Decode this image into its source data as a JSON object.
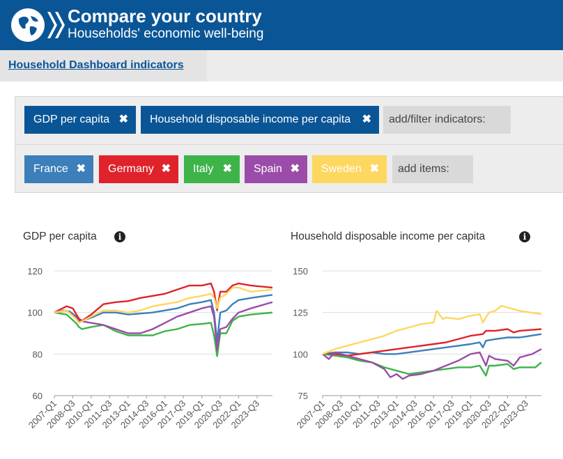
{
  "header": {
    "title": "Compare your country",
    "subtitle": "Households' economic well-being"
  },
  "tabs": [
    {
      "label": "Household Dashboard indicators"
    }
  ],
  "indicators": {
    "chips": [
      {
        "label": "GDP per capita",
        "color": "#0a5596"
      },
      {
        "label": "Household disposable income per capita",
        "color": "#0a5596"
      }
    ],
    "add_placeholder": "add/filter indicators:"
  },
  "countries": {
    "chips": [
      {
        "label": "France",
        "color": "#3c7fba"
      },
      {
        "label": "Germany",
        "color": "#e0232b"
      },
      {
        "label": "Italy",
        "color": "#3db34a"
      },
      {
        "label": "Spain",
        "color": "#9b4ca8"
      },
      {
        "label": "Sweden",
        "color": "#fdd75f"
      }
    ],
    "add_placeholder": "add items:"
  },
  "icons": {
    "remove": "close-icon",
    "info": "info-icon",
    "logo": "globe-logo-icon"
  },
  "chart_data": [
    {
      "type": "line",
      "title": "GDP per capita",
      "xlabel": "",
      "ylabel": "",
      "ylim": [
        60,
        120
      ],
      "yticks": [
        60,
        80,
        100,
        120
      ],
      "grid": true,
      "x_start": "2007-Q1",
      "x_end": "2024-Q4",
      "x_tick_labels": [
        "2007-Q1",
        "2008-Q3",
        "2010-Q1",
        "2011-Q3",
        "2013-Q1",
        "2014-Q3",
        "2016-Q1",
        "2017-Q3",
        "2019-Q1",
        "2020-Q3",
        "2022-Q1",
        "2023-Q3"
      ],
      "series": [
        {
          "name": "France",
          "color": "#3c7fba",
          "points": [
            [
              "2007-Q1",
              100
            ],
            [
              "2007-Q4",
              101
            ],
            [
              "2008-Q2",
              100.5
            ],
            [
              "2009-Q1",
              97
            ],
            [
              "2009-Q2",
              96
            ],
            [
              "2010-Q1",
              97.5
            ],
            [
              "2011-Q1",
              100
            ],
            [
              "2012-Q1",
              100
            ],
            [
              "2013-Q1",
              99
            ],
            [
              "2014-Q1",
              99.5
            ],
            [
              "2015-Q1",
              100
            ],
            [
              "2016-Q1",
              101
            ],
            [
              "2017-Q1",
              102
            ],
            [
              "2018-Q1",
              104
            ],
            [
              "2019-Q1",
              105
            ],
            [
              "2019-Q4",
              106
            ],
            [
              "2020-Q1",
              100
            ],
            [
              "2020-Q2",
              86
            ],
            [
              "2020-Q3",
              100
            ],
            [
              "2021-Q1",
              101
            ],
            [
              "2021-Q3",
              104
            ],
            [
              "2022-Q1",
              106
            ],
            [
              "2023-Q1",
              107
            ],
            [
              "2024-Q4",
              108.5
            ]
          ]
        },
        {
          "name": "Germany",
          "color": "#e0232b",
          "points": [
            [
              "2007-Q1",
              100
            ],
            [
              "2008-Q1",
              103
            ],
            [
              "2008-Q3",
              102
            ],
            [
              "2009-Q1",
              97
            ],
            [
              "2009-Q2",
              96
            ],
            [
              "2010-Q1",
              99
            ],
            [
              "2011-Q1",
              104
            ],
            [
              "2012-Q1",
              105
            ],
            [
              "2013-Q1",
              105.5
            ],
            [
              "2014-Q1",
              107
            ],
            [
              "2015-Q1",
              108
            ],
            [
              "2016-Q1",
              109
            ],
            [
              "2017-Q1",
              111
            ],
            [
              "2018-Q1",
              113
            ],
            [
              "2019-Q1",
              113
            ],
            [
              "2019-Q4",
              114
            ],
            [
              "2020-Q1",
              110
            ],
            [
              "2020-Q2",
              101
            ],
            [
              "2020-Q3",
              110
            ],
            [
              "2021-Q1",
              110
            ],
            [
              "2021-Q3",
              113
            ],
            [
              "2022-Q1",
              114
            ],
            [
              "2023-Q1",
              113
            ],
            [
              "2024-Q4",
              112
            ]
          ]
        },
        {
          "name": "Italy",
          "color": "#3db34a",
          "points": [
            [
              "2007-Q1",
              100
            ],
            [
              "2008-Q1",
              99
            ],
            [
              "2008-Q4",
              95
            ],
            [
              "2009-Q1",
              93
            ],
            [
              "2009-Q2",
              92
            ],
            [
              "2010-Q1",
              93
            ],
            [
              "2011-Q1",
              94
            ],
            [
              "2012-Q1",
              91
            ],
            [
              "2013-Q1",
              89
            ],
            [
              "2014-Q1",
              89
            ],
            [
              "2015-Q1",
              89
            ],
            [
              "2016-Q1",
              91
            ],
            [
              "2017-Q1",
              92
            ],
            [
              "2018-Q1",
              94
            ],
            [
              "2019-Q1",
              94.5
            ],
            [
              "2019-Q4",
              95
            ],
            [
              "2020-Q1",
              89
            ],
            [
              "2020-Q2",
              79
            ],
            [
              "2020-Q3",
              90
            ],
            [
              "2021-Q1",
              90
            ],
            [
              "2021-Q3",
              96
            ],
            [
              "2022-Q1",
              98
            ],
            [
              "2023-Q1",
              99
            ],
            [
              "2024-Q4",
              100
            ]
          ]
        },
        {
          "name": "Spain",
          "color": "#9b4ca8",
          "points": [
            [
              "2007-Q1",
              100
            ],
            [
              "2008-Q1",
              101
            ],
            [
              "2009-Q1",
              96
            ],
            [
              "2010-Q1",
              95
            ],
            [
              "2011-Q1",
              94
            ],
            [
              "2012-Q1",
              92
            ],
            [
              "2013-Q1",
              90
            ],
            [
              "2014-Q1",
              90
            ],
            [
              "2015-Q1",
              92
            ],
            [
              "2016-Q1",
              95
            ],
            [
              "2017-Q1",
              98
            ],
            [
              "2018-Q1",
              100
            ],
            [
              "2019-Q1",
              102
            ],
            [
              "2019-Q4",
              103
            ],
            [
              "2020-Q1",
              98
            ],
            [
              "2020-Q2",
              82
            ],
            [
              "2020-Q3",
              92
            ],
            [
              "2021-Q1",
              93
            ],
            [
              "2021-Q3",
              97
            ],
            [
              "2022-Q1",
              100
            ],
            [
              "2023-Q1",
              102
            ],
            [
              "2024-Q4",
              105
            ]
          ]
        },
        {
          "name": "Sweden",
          "color": "#fdd75f",
          "points": [
            [
              "2007-Q1",
              100
            ],
            [
              "2008-Q1",
              101
            ],
            [
              "2008-Q4",
              97
            ],
            [
              "2009-Q1",
              95
            ],
            [
              "2010-Q1",
              98
            ],
            [
              "2011-Q1",
              101
            ],
            [
              "2012-Q1",
              101
            ],
            [
              "2013-Q1",
              100
            ],
            [
              "2014-Q1",
              101
            ],
            [
              "2015-Q1",
              103
            ],
            [
              "2016-Q1",
              104
            ],
            [
              "2017-Q1",
              105
            ],
            [
              "2018-Q1",
              107
            ],
            [
              "2019-Q1",
              108
            ],
            [
              "2019-Q4",
              109
            ],
            [
              "2020-Q1",
              107
            ],
            [
              "2020-Q2",
              102
            ],
            [
              "2020-Q3",
              107
            ],
            [
              "2021-Q1",
              109
            ],
            [
              "2021-Q3",
              112
            ],
            [
              "2022-Q1",
              112
            ],
            [
              "2023-Q1",
              110
            ],
            [
              "2024-Q4",
              111
            ]
          ]
        }
      ]
    },
    {
      "type": "line",
      "title": "Household disposable income per capita",
      "xlabel": "",
      "ylabel": "",
      "ylim": [
        75,
        150
      ],
      "yticks": [
        75,
        100,
        125,
        150
      ],
      "grid": true,
      "x_start": "2007-Q1",
      "x_end": "2024-Q4",
      "x_tick_labels": [
        "2007-Q1",
        "2008-Q3",
        "2010-Q1",
        "2011-Q3",
        "2013-Q1",
        "2014-Q3",
        "2016-Q1",
        "2017-Q3",
        "2019-Q1",
        "2020-Q3",
        "2022-Q1",
        "2023-Q3"
      ],
      "series": [
        {
          "name": "France",
          "color": "#3c7fba",
          "points": [
            [
              "2007-Q1",
              100
            ],
            [
              "2008-Q1",
              101
            ],
            [
              "2009-Q1",
              101
            ],
            [
              "2010-Q1",
              100
            ],
            [
              "2011-Q1",
              101
            ],
            [
              "2012-Q1",
              100
            ],
            [
              "2013-Q1",
              100
            ],
            [
              "2014-Q1",
              101
            ],
            [
              "2015-Q1",
              102
            ],
            [
              "2016-Q1",
              103
            ],
            [
              "2017-Q1",
              104
            ],
            [
              "2018-Q1",
              105
            ],
            [
              "2019-Q1",
              106
            ],
            [
              "2019-Q4",
              107
            ],
            [
              "2020-Q1",
              104
            ],
            [
              "2020-Q2",
              108
            ],
            [
              "2021-Q1",
              109
            ],
            [
              "2022-Q1",
              110
            ],
            [
              "2023-Q1",
              110
            ],
            [
              "2024-Q4",
              112
            ]
          ]
        },
        {
          "name": "Germany",
          "color": "#e0232b",
          "points": [
            [
              "2007-Q1",
              100
            ],
            [
              "2008-Q1",
              100
            ],
            [
              "2009-Q1",
              99
            ],
            [
              "2010-Q1",
              100
            ],
            [
              "2011-Q1",
              101
            ],
            [
              "2012-Q1",
              102
            ],
            [
              "2013-Q1",
              103
            ],
            [
              "2014-Q1",
              104
            ],
            [
              "2015-Q1",
              105
            ],
            [
              "2016-Q1",
              106
            ],
            [
              "2017-Q1",
              107
            ],
            [
              "2018-Q1",
              109
            ],
            [
              "2019-Q1",
              111
            ],
            [
              "2020-Q1",
              112
            ],
            [
              "2020-Q2",
              114
            ],
            [
              "2021-Q1",
              114
            ],
            [
              "2022-Q1",
              115
            ],
            [
              "2022-Q3",
              113
            ],
            [
              "2023-Q1",
              114
            ],
            [
              "2024-Q4",
              115
            ]
          ]
        },
        {
          "name": "Italy",
          "color": "#3db34a",
          "points": [
            [
              "2007-Q1",
              100
            ],
            [
              "2008-Q1",
              99
            ],
            [
              "2009-Q1",
              98
            ],
            [
              "2010-Q1",
              96
            ],
            [
              "2011-Q1",
              95
            ],
            [
              "2012-Q1",
              92
            ],
            [
              "2013-Q1",
              90
            ],
            [
              "2014-Q1",
              88
            ],
            [
              "2015-Q1",
              89
            ],
            [
              "2016-Q1",
              90
            ],
            [
              "2017-Q1",
              91
            ],
            [
              "2018-Q1",
              92
            ],
            [
              "2019-Q1",
              92
            ],
            [
              "2019-Q4",
              93
            ],
            [
              "2020-Q2",
              87
            ],
            [
              "2020-Q3",
              93
            ],
            [
              "2021-Q1",
              93
            ],
            [
              "2022-Q1",
              94
            ],
            [
              "2022-Q3",
              91
            ],
            [
              "2023-Q1",
              92
            ],
            [
              "2024-Q2",
              92
            ],
            [
              "2024-Q4",
              95
            ]
          ]
        },
        {
          "name": "Spain",
          "color": "#9b4ca8",
          "points": [
            [
              "2007-Q1",
              100
            ],
            [
              "2007-Q3",
              97
            ],
            [
              "2008-Q1",
              101
            ],
            [
              "2009-Q1",
              99
            ],
            [
              "2010-Q1",
              97
            ],
            [
              "2011-Q1",
              95
            ],
            [
              "2012-Q1",
              91
            ],
            [
              "2012-Q3",
              86
            ],
            [
              "2013-Q1",
              88
            ],
            [
              "2013-Q3",
              85
            ],
            [
              "2014-Q1",
              87
            ],
            [
              "2015-Q1",
              88
            ],
            [
              "2016-Q1",
              90
            ],
            [
              "2017-Q1",
              93
            ],
            [
              "2018-Q1",
              96
            ],
            [
              "2019-Q1",
              100
            ],
            [
              "2019-Q4",
              101
            ],
            [
              "2020-Q2",
              93
            ],
            [
              "2020-Q3",
              99
            ],
            [
              "2021-Q1",
              97
            ],
            [
              "2022-Q1",
              96
            ],
            [
              "2022-Q3",
              93
            ],
            [
              "2023-Q1",
              98
            ],
            [
              "2024-Q1",
              100
            ],
            [
              "2024-Q4",
              103
            ]
          ]
        },
        {
          "name": "Sweden",
          "color": "#fdd75f",
          "points": [
            [
              "2007-Q1",
              100
            ],
            [
              "2008-Q1",
              103
            ],
            [
              "2009-Q1",
              105
            ],
            [
              "2010-Q1",
              107
            ],
            [
              "2011-Q1",
              109
            ],
            [
              "2012-Q1",
              111
            ],
            [
              "2013-Q1",
              114
            ],
            [
              "2014-Q1",
              116
            ],
            [
              "2015-Q1",
              118
            ],
            [
              "2016-Q1",
              119
            ],
            [
              "2016-Q2",
              126
            ],
            [
              "2016-Q4",
              121
            ],
            [
              "2017-Q1",
              122
            ],
            [
              "2018-Q1",
              121
            ],
            [
              "2019-Q1",
              123
            ],
            [
              "2019-Q4",
              124
            ],
            [
              "2020-Q1",
              119
            ],
            [
              "2020-Q3",
              125
            ],
            [
              "2021-Q1",
              126
            ],
            [
              "2021-Q3",
              129
            ],
            [
              "2022-Q1",
              128
            ],
            [
              "2023-Q1",
              126
            ],
            [
              "2024-Q4",
              124
            ]
          ]
        }
      ]
    }
  ]
}
